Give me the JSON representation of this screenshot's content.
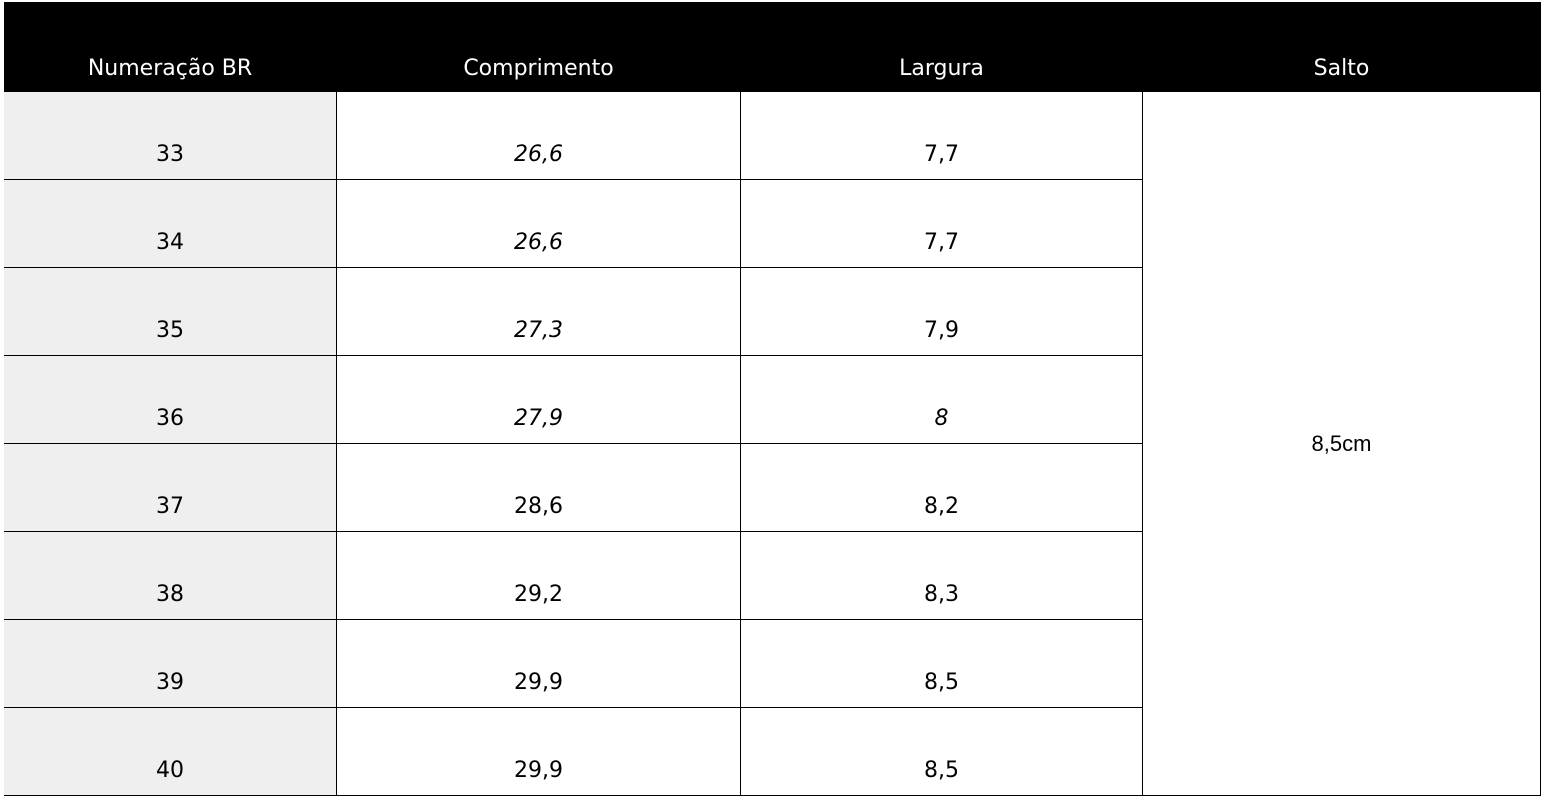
{
  "table": {
    "header": [
      "Numeração BR",
      "Comprimento",
      "Largura",
      "Salto"
    ],
    "rows": [
      [
        "33",
        "26,6",
        "7,7"
      ],
      [
        "34",
        "26,6",
        "7,7"
      ],
      [
        "35",
        "27,3",
        "7,9"
      ],
      [
        "36",
        "27,9",
        "8"
      ],
      [
        "37",
        "28,6",
        "8,2"
      ],
      [
        "38",
        "29,2",
        "8,3"
      ],
      [
        "39",
        "29,9",
        "8,5"
      ],
      [
        "40",
        "29,9",
        "8,5"
      ]
    ],
    "salto": "8,5cm"
  }
}
